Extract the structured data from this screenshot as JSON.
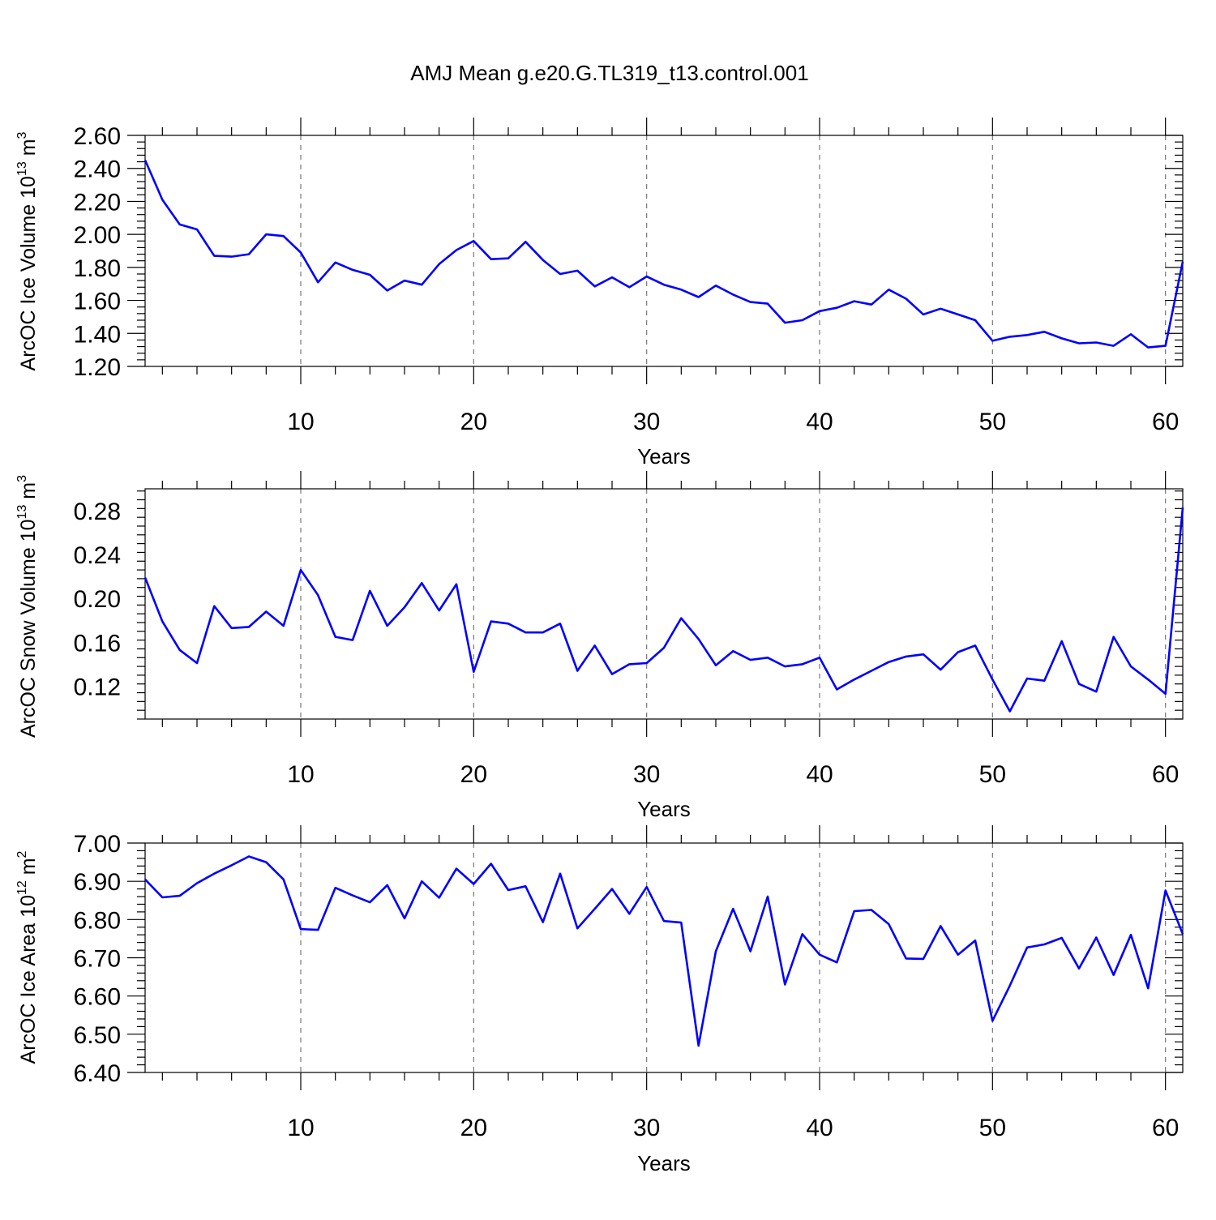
{
  "figure": {
    "title": "AMJ Mean g.e20.G.TL319_t13.control.001"
  },
  "colors": {
    "line": "#0000ff",
    "grid": "#777777"
  },
  "chart_data": [
    {
      "type": "line",
      "name": "ice-volume",
      "ylabel": {
        "main": "ArcOC Ice Volume 10",
        "exp": "13",
        "unit": " m",
        "unit_exp": "3"
      },
      "xlabel": "Years",
      "xlim": [
        1,
        61
      ],
      "ylim": [
        1.2,
        2.6
      ],
      "xticks": [
        10,
        20,
        30,
        40,
        50,
        60
      ],
      "xtick_labels": [
        "10",
        "20",
        "30",
        "40",
        "50",
        "60"
      ],
      "yticks": [
        1.2,
        1.4,
        1.6,
        1.8,
        2.0,
        2.2,
        2.4,
        2.6
      ],
      "ytick_labels": [
        "1.20",
        "1.40",
        "1.60",
        "1.80",
        "2.00",
        "2.20",
        "2.40",
        "2.60"
      ],
      "grid": "dashed vertical at major x ticks",
      "series": [
        {
          "x": [
            1,
            2,
            3,
            4,
            5,
            6,
            7,
            8,
            9,
            10,
            11,
            12,
            13,
            14,
            15,
            16,
            17,
            18,
            19,
            20,
            21,
            22,
            23,
            24,
            25,
            26,
            27,
            28,
            29,
            30,
            31,
            32,
            33,
            34,
            35,
            36,
            37,
            38,
            39,
            40,
            41,
            42,
            43,
            44,
            45,
            46,
            47,
            48,
            49,
            50,
            51,
            52,
            53,
            54,
            55,
            56,
            57,
            58,
            59,
            60,
            61
          ],
          "values": [
            2.45,
            2.21,
            2.06,
            2.03,
            1.87,
            1.865,
            1.88,
            2.0,
            1.99,
            1.89,
            1.71,
            1.83,
            1.785,
            1.755,
            1.66,
            1.72,
            1.695,
            1.82,
            1.905,
            1.96,
            1.85,
            1.855,
            1.955,
            1.845,
            1.76,
            1.78,
            1.685,
            1.74,
            1.68,
            1.745,
            1.695,
            1.665,
            1.62,
            1.69,
            1.635,
            1.59,
            1.58,
            1.465,
            1.48,
            1.535,
            1.555,
            1.595,
            1.575,
            1.665,
            1.61,
            1.515,
            1.55,
            1.515,
            1.48,
            1.355,
            1.38,
            1.39,
            1.41,
            1.37,
            1.34,
            1.345,
            1.325,
            1.395,
            1.315,
            1.325,
            1.835
          ]
        }
      ]
    },
    {
      "type": "line",
      "name": "snow-volume",
      "ylabel": {
        "main": "ArcOC Snow Volume 10",
        "exp": "13",
        "unit": " m",
        "unit_exp": "3"
      },
      "xlabel": "Years",
      "xlim": [
        1,
        61
      ],
      "ylim": [
        0.09,
        0.3
      ],
      "xticks": [
        10,
        20,
        30,
        40,
        50,
        60
      ],
      "xtick_labels": [
        "10",
        "20",
        "30",
        "40",
        "50",
        "60"
      ],
      "yticks": [
        0.12,
        0.16,
        0.2,
        0.24,
        0.28
      ],
      "ytick_labels": [
        "0.12",
        "0.16",
        "0.20",
        "0.24",
        "0.28"
      ],
      "grid": "dashed vertical at major x ticks",
      "series": [
        {
          "x": [
            1,
            2,
            3,
            4,
            5,
            6,
            7,
            8,
            9,
            10,
            11,
            12,
            13,
            14,
            15,
            16,
            17,
            18,
            19,
            20,
            21,
            22,
            23,
            24,
            25,
            26,
            27,
            28,
            29,
            30,
            31,
            32,
            33,
            34,
            35,
            36,
            37,
            38,
            39,
            40,
            41,
            42,
            43,
            44,
            45,
            46,
            47,
            48,
            49,
            50,
            51,
            52,
            53,
            54,
            55,
            56,
            57,
            58,
            59,
            60,
            61
          ],
          "values": [
            0.219,
            0.179,
            0.153,
            0.141,
            0.193,
            0.173,
            0.174,
            0.188,
            0.175,
            0.226,
            0.203,
            0.165,
            0.162,
            0.207,
            0.175,
            0.192,
            0.214,
            0.189,
            0.213,
            0.133,
            0.179,
            0.177,
            0.169,
            0.169,
            0.177,
            0.134,
            0.157,
            0.131,
            0.14,
            0.141,
            0.155,
            0.182,
            0.163,
            0.139,
            0.152,
            0.144,
            0.146,
            0.138,
            0.14,
            0.146,
            0.117,
            0.126,
            0.134,
            0.142,
            0.147,
            0.149,
            0.135,
            0.151,
            0.157,
            0.126,
            0.097,
            0.127,
            0.125,
            0.161,
            0.122,
            0.115,
            0.165,
            0.138,
            0.126,
            0.113,
            0.283
          ]
        }
      ]
    },
    {
      "type": "line",
      "name": "ice-area",
      "ylabel": {
        "main": "ArcOC Ice Area 10",
        "exp": "12",
        "unit": " m",
        "unit_exp": "2"
      },
      "xlabel": "Years",
      "xlim": [
        1,
        61
      ],
      "ylim": [
        6.4,
        7.0
      ],
      "xticks": [
        10,
        20,
        30,
        40,
        50,
        60
      ],
      "xtick_labels": [
        "10",
        "20",
        "30",
        "40",
        "50",
        "60"
      ],
      "yticks": [
        6.4,
        6.5,
        6.6,
        6.7,
        6.8,
        6.9,
        7.0
      ],
      "ytick_labels": [
        "6.40",
        "6.50",
        "6.60",
        "6.70",
        "6.80",
        "6.90",
        "7.00"
      ],
      "grid": "dashed vertical at major x ticks",
      "series": [
        {
          "x": [
            1,
            2,
            3,
            4,
            5,
            6,
            7,
            8,
            9,
            10,
            11,
            12,
            13,
            14,
            15,
            16,
            17,
            18,
            19,
            20,
            21,
            22,
            23,
            24,
            25,
            26,
            27,
            28,
            29,
            30,
            31,
            32,
            33,
            34,
            35,
            36,
            37,
            38,
            39,
            40,
            41,
            42,
            43,
            44,
            45,
            46,
            47,
            48,
            49,
            50,
            51,
            52,
            53,
            54,
            55,
            56,
            57,
            58,
            59,
            60,
            61
          ],
          "values": [
            6.905,
            6.858,
            6.862,
            6.895,
            6.92,
            6.942,
            6.965,
            6.95,
            6.905,
            6.775,
            6.773,
            6.883,
            6.863,
            6.845,
            6.89,
            6.803,
            6.9,
            6.857,
            6.933,
            6.893,
            6.946,
            6.877,
            6.887,
            6.793,
            6.92,
            6.777,
            6.828,
            6.88,
            6.815,
            6.885,
            6.796,
            6.792,
            6.47,
            6.717,
            6.828,
            6.717,
            6.86,
            6.63,
            6.762,
            6.708,
            6.688,
            6.822,
            6.825,
            6.788,
            6.698,
            6.697,
            6.783,
            6.708,
            6.745,
            6.535,
            6.627,
            6.727,
            6.735,
            6.752,
            6.672,
            6.753,
            6.655,
            6.76,
            6.62,
            6.876,
            6.762
          ]
        }
      ]
    }
  ]
}
